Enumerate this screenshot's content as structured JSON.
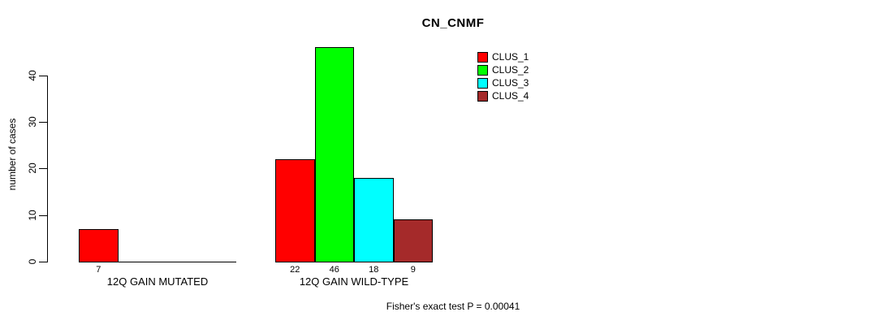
{
  "title": "CN_CNMF",
  "y_axis": {
    "label": "number of cases",
    "ticks": [
      0,
      10,
      20,
      30,
      40
    ]
  },
  "footer": "Fisher's exact test P = 0.00041",
  "legend": {
    "items": [
      {
        "label": "CLUS_1",
        "color": "#ff0000"
      },
      {
        "label": "CLUS_2",
        "color": "#00ff00"
      },
      {
        "label": "CLUS_3",
        "color": "#00ffff"
      },
      {
        "label": "CLUS_4",
        "color": "#a52a2a"
      }
    ]
  },
  "chart_data": {
    "type": "bar",
    "title": "CN_CNMF",
    "xlabel": "",
    "ylabel": "number of cases",
    "ylim": [
      0,
      46
    ],
    "yticks": [
      0,
      10,
      20,
      30,
      40
    ],
    "grid": false,
    "legend_position": "top-right",
    "categories": [
      "12Q GAIN MUTATED",
      "12Q GAIN WILD-TYPE"
    ],
    "series": [
      {
        "name": "CLUS_1",
        "color": "#ff0000",
        "values": [
          7,
          22
        ]
      },
      {
        "name": "CLUS_2",
        "color": "#00ff00",
        "values": [
          0,
          46
        ]
      },
      {
        "name": "CLUS_3",
        "color": "#00ffff",
        "values": [
          0,
          18
        ]
      },
      {
        "name": "CLUS_4",
        "color": "#a52a2a",
        "values": [
          0,
          9
        ]
      }
    ],
    "bar_value_labels": {
      "shown": true,
      "only_nonzero": true
    },
    "annotation": "Fisher's exact test P = 0.00041"
  }
}
